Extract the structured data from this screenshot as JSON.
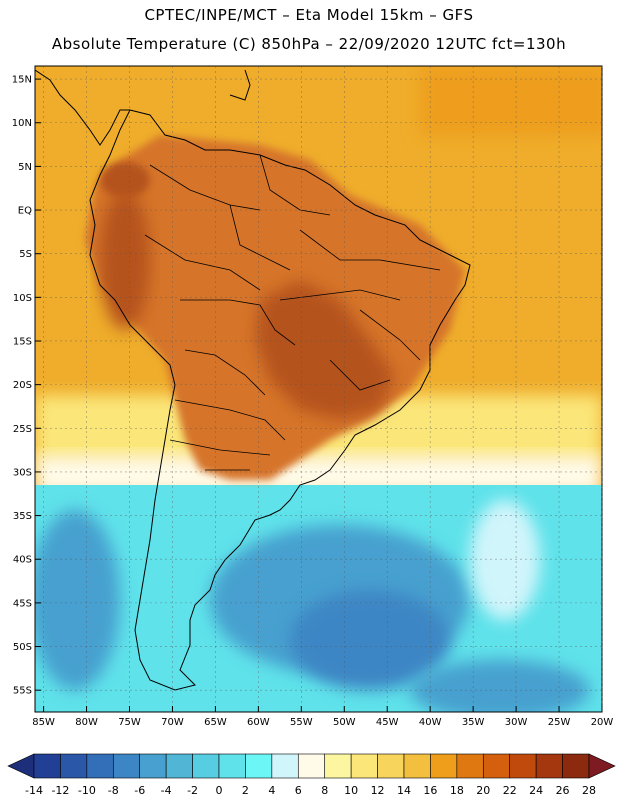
{
  "title": {
    "line1": "CPTEC/INPE/MCT –  Eta Model 15km – GFS",
    "line2": "Absolute Temperature (C) 850hPa – 22/09/2020 12UTC fct=130h"
  },
  "axes": {
    "lat_labels": [
      "15N",
      "10N",
      "5N",
      "EQ",
      "5S",
      "10S",
      "15S",
      "20S",
      "25S",
      "30S",
      "35S",
      "40S",
      "45S",
      "50S",
      "55S"
    ],
    "lat_values": [
      15,
      10,
      5,
      0,
      -5,
      -10,
      -15,
      -20,
      -25,
      -30,
      -35,
      -40,
      -45,
      -50,
      -55
    ],
    "lon_labels": [
      "85W",
      "80W",
      "75W",
      "70W",
      "65W",
      "60W",
      "55W",
      "50W",
      "45W",
      "40W",
      "35W",
      "30W",
      "25W",
      "20W"
    ],
    "lon_values": [
      -85,
      -80,
      -75,
      -70,
      -65,
      -60,
      -55,
      -50,
      -45,
      -40,
      -35,
      -30,
      -25,
      -20
    ],
    "lat_range": [
      -57.5,
      16.5
    ],
    "lon_range": [
      -86,
      -20
    ]
  },
  "colorbar": {
    "labels": [
      "-14",
      "-12",
      "-10",
      "-8",
      "-6",
      "-4",
      "-2",
      "0",
      "2",
      "4",
      "6",
      "8",
      "10",
      "12",
      "14",
      "16",
      "18",
      "20",
      "22",
      "24",
      "26",
      "28"
    ],
    "colors": [
      "#213f94",
      "#2a57a8",
      "#336fb9",
      "#3d86c5",
      "#47a0cf",
      "#51b6d6",
      "#57cde1",
      "#5fe2ea",
      "#6cf6f6",
      "#d0f5fb",
      "#fffbe8",
      "#fdf6a0",
      "#fbe679",
      "#f7d45c",
      "#f3bf3e",
      "#ee9e1a",
      "#e07812",
      "#d4600e",
      "#bf4a0c",
      "#a4370d",
      "#8b2a0f"
    ],
    "under_color": "#1d2f7a",
    "over_color": "#7d1a22"
  },
  "map_colors": {
    "sea_warm": "#efad2b",
    "sea_hot": "#ee9e1a",
    "land_hot": "#d6742a",
    "land_very_hot": "#b5521b",
    "cool_yellow": "#fbe679",
    "pale": "#fffbe8",
    "cyan": "#5fe2ea",
    "blue": "#47a0cf",
    "deep_blue": "#3d86c5",
    "coast": "#000000"
  }
}
